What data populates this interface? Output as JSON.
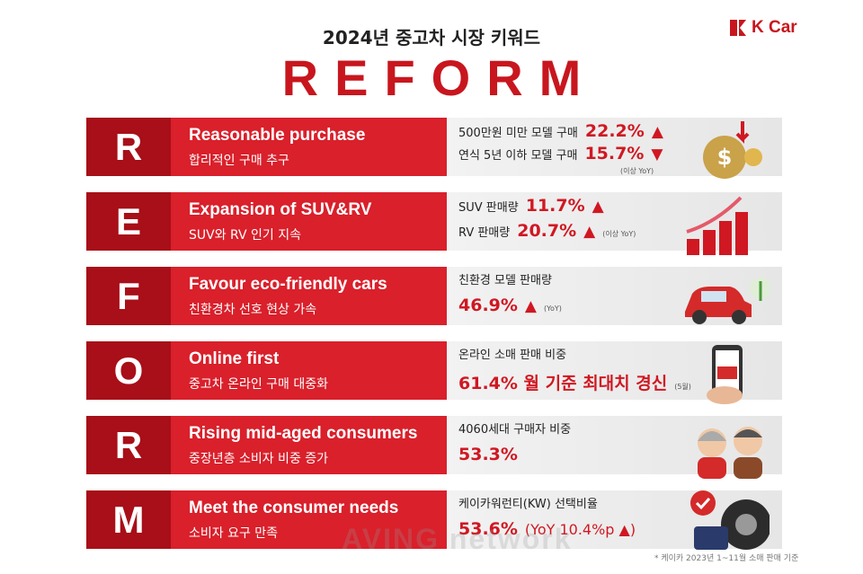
{
  "header": {
    "subtitle": "2024년 중고차 시장 키워드",
    "title": "REFORM",
    "logo": "K Car"
  },
  "rows": [
    {
      "letter": "R",
      "title_en": "Reasonable purchase",
      "title_ko": "합리적인 구매 추구",
      "lines": [
        {
          "label": "500만원 미만 모델 구매",
          "value": "22.2%",
          "arrow": "▲"
        },
        {
          "label": "연식 5년 이하 모델 구매",
          "value": "15.7%",
          "arrow": "▼"
        },
        {
          "note": "(이상 YoY)"
        }
      ]
    },
    {
      "letter": "E",
      "title_en": "Expansion of SUV&RV",
      "title_ko": "SUV와 RV 인기 지속",
      "lines": [
        {
          "label": "SUV 판매량",
          "value": "11.7%",
          "arrow": "▲"
        },
        {
          "label": "RV  판매량",
          "value": "20.7%",
          "arrow": "▲",
          "note": "(이상 YoY)"
        }
      ]
    },
    {
      "letter": "F",
      "title_en": "Favour eco-friendly cars",
      "title_ko": "친환경차 선호 현상 가속",
      "lines": [
        {
          "label": "친환경 모델 판매량"
        },
        {
          "value": "46.9%",
          "arrow": "▲",
          "note": "(YoY)"
        }
      ]
    },
    {
      "letter": "O",
      "title_en": "Online first",
      "title_ko": "중고차 온라인 구매 대중화",
      "lines": [
        {
          "label": "온라인 소매 판매 비중"
        },
        {
          "value": "61.4% 월 기준 최대치 경신",
          "note": "(5월)"
        }
      ]
    },
    {
      "letter": "R",
      "title_en": "Rising mid-aged consumers",
      "title_ko": "중장년층 소비자 비중 증가",
      "lines": [
        {
          "label": "4060세대 구매자 비중"
        },
        {
          "value": "53.3%"
        }
      ]
    },
    {
      "letter": "M",
      "title_en": "Meet the consumer needs",
      "title_ko": "소비자 요구 만족",
      "lines": [
        {
          "label": "케이카워런티(KW) 선택비율"
        },
        {
          "value": "53.6%",
          "detail": "(YoY 10.4%p ▲)"
        }
      ]
    }
  ],
  "footnote": "* 케이카 2023년 1~11월 소매 판매 기준",
  "watermark": "AVING network"
}
